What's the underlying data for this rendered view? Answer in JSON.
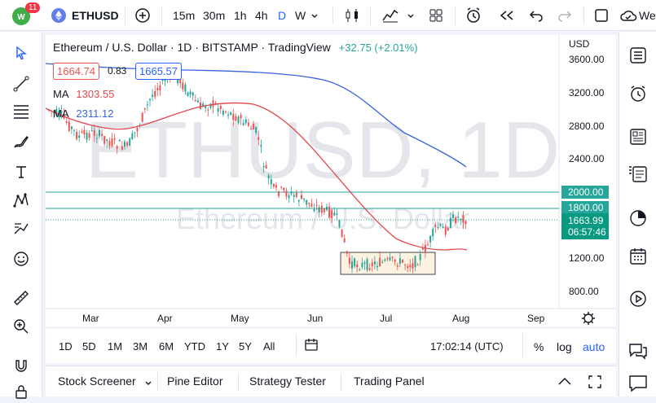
{
  "topbar": {
    "notification_count": "11",
    "symbol": "ETHUSD",
    "intervals": [
      "15m",
      "30m",
      "1h",
      "4h",
      "D",
      "W"
    ],
    "active_interval": "D",
    "truncated_label": "We"
  },
  "legend": {
    "title": "Ethereum / U.S. Dollar · 1D · BITSTAMP · TradingView",
    "change": "+32.75 (+2.01%)",
    "sell_price": "1664.74",
    "spread": "0.83",
    "buy_price": "1665.57",
    "ma1_label": "MA",
    "ma1_value": "1303.55",
    "ma2_label": "MA",
    "ma2_value": "2311.12"
  },
  "watermark": {
    "big": "ETHUSD, 1D",
    "small": "Ethereum / U.S. Dollar"
  },
  "price_axis": {
    "currency": "USD",
    "ticks": [
      "3600.00",
      "3200.00",
      "2800.00",
      "2400.00",
      "1200.00",
      "800.00"
    ],
    "label_2000": "2000.00",
    "label_1800": "1800.00",
    "last_price": "1663.99",
    "countdown": "06:57:46"
  },
  "time_axis": {
    "labels": [
      "Mar",
      "Apr",
      "May",
      "Jun",
      "Jul",
      "Aug",
      "Sep"
    ]
  },
  "range_bar": {
    "ranges": [
      "1D",
      "5D",
      "1M",
      "3M",
      "6M",
      "YTD",
      "1Y",
      "5Y",
      "All"
    ],
    "clock": "17:02:14 (UTC)",
    "percent": "%",
    "log": "log",
    "auto": "auto"
  },
  "bottom_tabs": [
    "Stock Screener",
    "Pine Editor",
    "Strategy Tester",
    "Trading Panel"
  ],
  "colors": {
    "up": "#26a69a",
    "down": "#ef5350",
    "ma_fast": "#e0474c",
    "ma_slow": "#3763e0",
    "level": "#26a69a",
    "accent": "#2962ff"
  },
  "chart_data": {
    "type": "candlestick",
    "x_range": [
      "Feb",
      "Aug"
    ],
    "y_range": [
      700,
      3700
    ],
    "levels": [
      2000,
      1800
    ],
    "consolidation_box": {
      "from": "mid-Jun",
      "to": "late-Jul",
      "low": 1000,
      "high": 1270
    },
    "moving_averages": [
      {
        "name": "MA",
        "value": 1303.55
      },
      {
        "name": "MA",
        "value": 2311.12
      }
    ]
  }
}
